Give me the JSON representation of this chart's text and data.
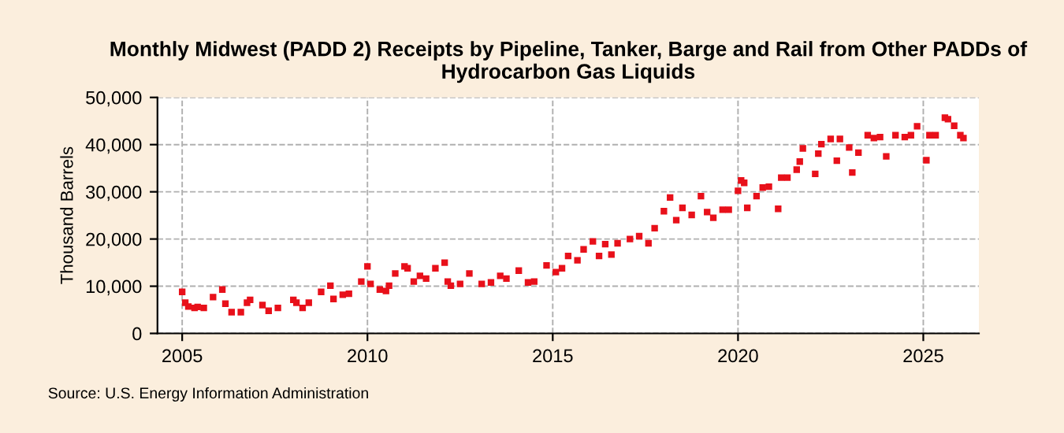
{
  "chart_data": {
    "type": "scatter",
    "title": "Monthly Midwest (PADD 2) Receipts by Pipeline, Tanker, Barge and Rail from Other PADDs of Hydrocarbon Gas Liquids",
    "ylabel": "Thousand Barrels",
    "annotations": [
      "Source: U.S. Energy Information Administration"
    ],
    "x": [
      "2005-01",
      "2005-02",
      "2005-03",
      "2005-05",
      "2005-06",
      "2005-08",
      "2005-11",
      "2006-02",
      "2006-03",
      "2006-05",
      "2006-08",
      "2006-10",
      "2006-11",
      "2007-03",
      "2007-05",
      "2007-08",
      "2008-01",
      "2008-02",
      "2008-04",
      "2008-06",
      "2008-10",
      "2009-01",
      "2009-02",
      "2009-05",
      "2009-07",
      "2009-11",
      "2010-01",
      "2010-02",
      "2010-05",
      "2010-07",
      "2010-08",
      "2010-10",
      "2011-01",
      "2011-02",
      "2011-04",
      "2011-06",
      "2011-08",
      "2011-11",
      "2012-02",
      "2012-03",
      "2012-04",
      "2012-07",
      "2012-10",
      "2013-02",
      "2013-05",
      "2013-08",
      "2013-10",
      "2014-02",
      "2014-05",
      "2014-07",
      "2014-11",
      "2015-02",
      "2015-04",
      "2015-06",
      "2015-09",
      "2015-11",
      "2016-02",
      "2016-04",
      "2016-06",
      "2016-08",
      "2016-10",
      "2017-02",
      "2017-05",
      "2017-08",
      "2017-10",
      "2018-01",
      "2018-03",
      "2018-05",
      "2018-07",
      "2018-10",
      "2019-01",
      "2019-03",
      "2019-05",
      "2019-08",
      "2019-10",
      "2020-01",
      "2020-02",
      "2020-03",
      "2020-04",
      "2020-07",
      "2020-09",
      "2020-11",
      "2021-02",
      "2021-03",
      "2021-05",
      "2021-08",
      "2021-09",
      "2021-10",
      "2022-02",
      "2022-03",
      "2022-04",
      "2022-07",
      "2022-09",
      "2022-10",
      "2023-01",
      "2023-02",
      "2023-04",
      "2023-07",
      "2023-09",
      "2023-11",
      "2024-01",
      "2024-04",
      "2024-07",
      "2024-09",
      "2024-11",
      "2025-02",
      "2025-03",
      "2025-05",
      "2025-08",
      "2025-09",
      "2025-11",
      "2026-01",
      "2026-02"
    ],
    "series": [
      {
        "color": "#e8101a",
        "values": [
          8800,
          6500,
          5700,
          5400,
          5600,
          5400,
          7700,
          9300,
          6300,
          4500,
          4500,
          6500,
          7100,
          6000,
          4800,
          5400,
          7100,
          6500,
          5400,
          6500,
          8800,
          10100,
          7300,
          8200,
          8400,
          11000,
          14200,
          10500,
          9300,
          9000,
          10100,
          12700,
          14200,
          13800,
          11000,
          12200,
          11600,
          13800,
          15000,
          11000,
          10100,
          10500,
          12700,
          10500,
          10800,
          12200,
          11600,
          13300,
          10800,
          11000,
          14400,
          13000,
          13800,
          16400,
          15500,
          17800,
          19500,
          16400,
          18900,
          16700,
          19100,
          20000,
          20600,
          19100,
          22300,
          25900,
          28800,
          24000,
          26600,
          25100,
          29100,
          25700,
          24500,
          26200,
          26200,
          30200,
          32400,
          31900,
          26600,
          29100,
          30900,
          31100,
          26400,
          33000,
          33000,
          34700,
          36400,
          39200,
          33800,
          38100,
          40100,
          41200,
          36600,
          41200,
          39400,
          34100,
          38300,
          42000,
          41400,
          41600,
          37500,
          42000,
          41600,
          42000,
          43900,
          36700,
          42000,
          42000,
          45700,
          45400,
          44000,
          42000,
          41400
        ]
      }
    ],
    "marker": "square",
    "xlim": [
      "2004-05",
      "2026-07"
    ],
    "xticks": [
      "2005",
      "2010",
      "2015",
      "2020",
      "2025"
    ],
    "ylim": [
      0,
      50000
    ],
    "yticks": [
      {
        "value": 0,
        "label": "0"
      },
      {
        "value": 10000,
        "label": "10,000"
      },
      {
        "value": 20000,
        "label": "20,000"
      },
      {
        "value": 30000,
        "label": "30,000"
      },
      {
        "value": 40000,
        "label": "40,000"
      },
      {
        "value": 50000,
        "label": "50,000"
      }
    ],
    "grid": true,
    "legend": false
  }
}
